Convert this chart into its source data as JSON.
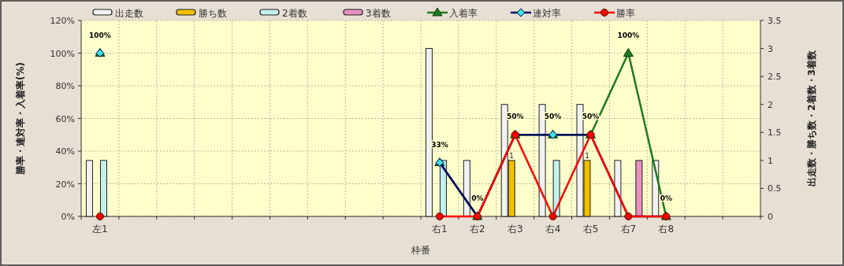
{
  "chart_data": {
    "type": "bar",
    "xlabel": "枠番",
    "ylabel": "勝率・連対率・入着率(%)",
    "y2label": "出走数・勝ち数・2着数・3着数",
    "categories": [
      "左1",
      null,
      null,
      null,
      null,
      null,
      null,
      null,
      null,
      "右1",
      "右2",
      "右3",
      "右4",
      "右5",
      "右7",
      "右8",
      null,
      null
    ],
    "series": [
      {
        "name": "出走数",
        "type": "bar",
        "axis": "y2",
        "color": "#f2f2f2",
        "values": [
          1,
          null,
          null,
          null,
          null,
          null,
          null,
          null,
          null,
          3,
          1,
          2,
          2,
          2,
          1,
          1,
          null,
          null
        ]
      },
      {
        "name": "勝ち数",
        "type": "bar",
        "axis": "y2",
        "color": "#f0c000",
        "values": [
          0,
          null,
          null,
          null,
          null,
          null,
          null,
          null,
          null,
          0,
          0,
          1,
          0,
          1,
          0,
          0,
          null,
          null
        ],
        "value_labels": [
          null,
          null,
          null,
          null,
          null,
          null,
          null,
          null,
          null,
          null,
          null,
          "1",
          null,
          "1",
          null,
          null,
          null,
          null
        ]
      },
      {
        "name": "2着数",
        "type": "bar",
        "axis": "y2",
        "color": "#c4f0f0",
        "values": [
          1,
          null,
          null,
          null,
          null,
          null,
          null,
          null,
          null,
          1,
          0,
          0,
          1,
          0,
          0,
          0,
          null,
          null
        ]
      },
      {
        "name": "3着数",
        "type": "bar",
        "axis": "y2",
        "color": "#e890c0",
        "values": [
          0,
          null,
          null,
          null,
          null,
          null,
          null,
          null,
          null,
          0,
          0,
          0,
          0,
          0,
          1,
          0,
          null,
          null
        ]
      },
      {
        "name": "入着率",
        "type": "line",
        "marker": "triangle",
        "color": "#1e7a1e",
        "values": [
          100,
          null,
          null,
          null,
          null,
          null,
          null,
          null,
          null,
          33,
          0,
          50,
          50,
          50,
          100,
          0,
          null,
          null
        ],
        "value_labels": [
          "100%",
          null,
          null,
          null,
          null,
          null,
          null,
          null,
          null,
          "33%",
          "0%",
          "50%",
          "50%",
          "50%",
          "100%",
          "0%",
          null,
          null
        ]
      },
      {
        "name": "連対率",
        "type": "line",
        "marker": "diamond",
        "color": "#000060",
        "values": [
          100,
          null,
          null,
          null,
          null,
          null,
          null,
          null,
          null,
          33,
          0,
          50,
          50,
          50,
          0,
          0,
          null,
          null
        ]
      },
      {
        "name": "勝率",
        "type": "line",
        "marker": "circle",
        "color": "#ff0000",
        "values": [
          0,
          null,
          null,
          null,
          null,
          null,
          null,
          null,
          null,
          0,
          0,
          50,
          0,
          50,
          0,
          0,
          null,
          null
        ]
      }
    ],
    "ylim": [
      0,
      120
    ],
    "yticks": [
      {
        "value": 0,
        "label": "0%"
      },
      {
        "value": 20,
        "label": "20%"
      },
      {
        "value": 40,
        "label": "40%"
      },
      {
        "value": 60,
        "label": "60%"
      },
      {
        "value": 80,
        "label": "80%"
      },
      {
        "value": 100,
        "label": "100%"
      },
      {
        "value": 120,
        "label": "120%"
      }
    ],
    "y2lim": [
      0,
      3.5
    ],
    "y2ticks": [
      0,
      0.5,
      1,
      1.5,
      2,
      2.5,
      3,
      3.5
    ],
    "grid": true,
    "legend": "top"
  }
}
